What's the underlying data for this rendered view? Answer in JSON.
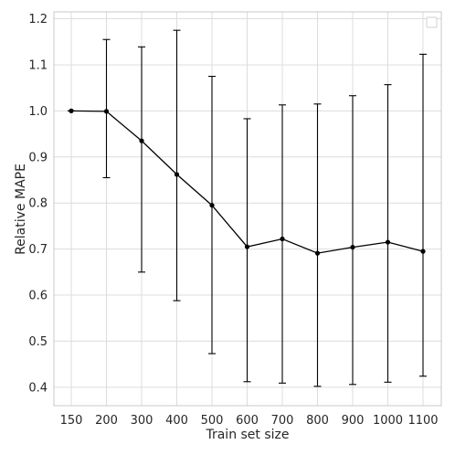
{
  "chart_data": {
    "type": "line",
    "title": "",
    "xlabel": "Train set size",
    "ylabel": "Relative MAPE",
    "categories": [
      "150",
      "200",
      "300",
      "400",
      "500",
      "600",
      "700",
      "800",
      "900",
      "1000",
      "1100"
    ],
    "series": [
      {
        "values": [
          1.0,
          0.999,
          0.935,
          0.862,
          0.795,
          0.705,
          0.722,
          0.691,
          0.704,
          0.715,
          0.695
        ],
        "err_low": [
          1.0,
          0.855,
          0.65,
          0.588,
          0.473,
          0.412,
          0.409,
          0.402,
          0.406,
          0.411,
          0.424
        ],
        "err_high": [
          1.0,
          1.155,
          1.139,
          1.175,
          1.075,
          0.983,
          1.013,
          1.015,
          1.033,
          1.057,
          1.123
        ],
        "color": "#000000"
      }
    ],
    "yticks": [
      "0.4",
      "0.5",
      "0.6",
      "0.7",
      "0.8",
      "0.9",
      "1.0",
      "1.1",
      "1.2"
    ],
    "ylim": [
      0.36,
      1.215
    ],
    "grid": true,
    "legend": "top-right",
    "legend_entries": []
  }
}
